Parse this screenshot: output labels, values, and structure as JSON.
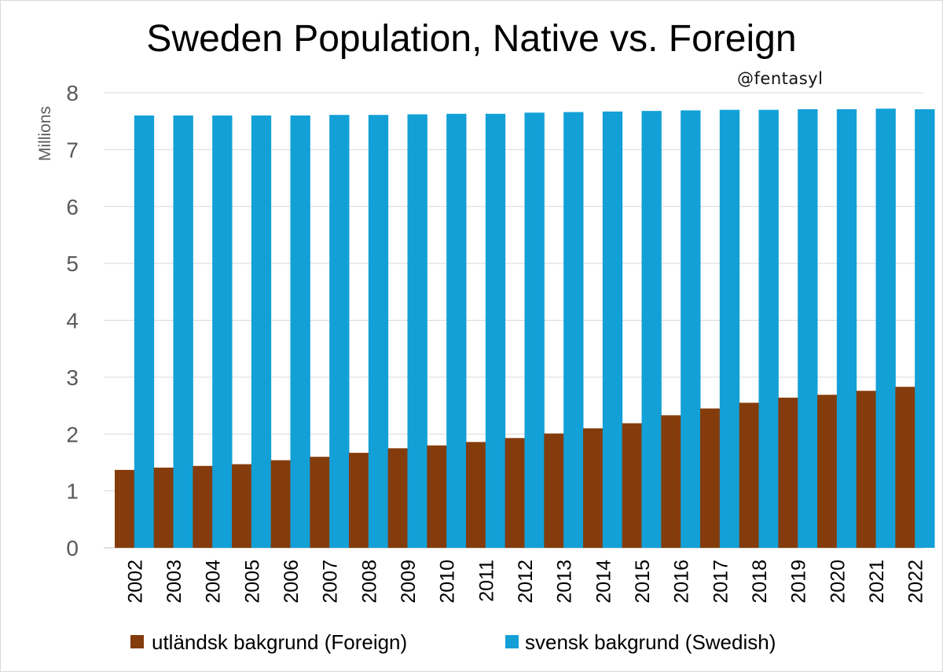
{
  "chart_data": {
    "type": "bar",
    "title": "Sweden Population, Native vs. Foreign",
    "credit": "@fentasyl",
    "xlabel": "",
    "ylabel": "Millions",
    "ylim": [
      0,
      8
    ],
    "yticks": [
      "0",
      "1",
      "2",
      "3",
      "4",
      "5",
      "6",
      "7",
      "8"
    ],
    "grid": true,
    "legend_position": "bottom",
    "categories": [
      "2002",
      "2003",
      "2004",
      "2005",
      "2006",
      "2007",
      "2008",
      "2009",
      "2010",
      "2011",
      "2012",
      "2013",
      "2014",
      "2015",
      "2016",
      "2017",
      "2018",
      "2019",
      "2020",
      "2021",
      "2022"
    ],
    "series": [
      {
        "name": "utländsk bakgrund (Foreign)",
        "color": "#843c0c",
        "values": [
          1.37,
          1.41,
          1.44,
          1.47,
          1.54,
          1.6,
          1.67,
          1.75,
          1.8,
          1.86,
          1.93,
          2.01,
          2.1,
          2.19,
          2.33,
          2.45,
          2.55,
          2.64,
          2.69,
          2.76,
          2.83
        ]
      },
      {
        "name": "svensk bakgrund (Swedish)",
        "color": "#12a0d7",
        "values": [
          7.6,
          7.6,
          7.6,
          7.6,
          7.6,
          7.61,
          7.61,
          7.62,
          7.63,
          7.63,
          7.65,
          7.66,
          7.67,
          7.68,
          7.69,
          7.7,
          7.7,
          7.71,
          7.71,
          7.72,
          7.71
        ]
      }
    ]
  }
}
